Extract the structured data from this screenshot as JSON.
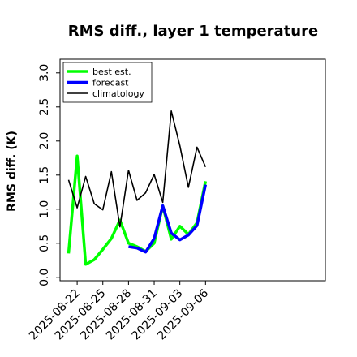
{
  "chart_data": {
    "type": "line",
    "title": "RMS diff., layer 1 temperature",
    "xlabel": "",
    "ylabel": "RMS diff. (K)",
    "x_range": [
      -2,
      29
    ],
    "ylim": [
      -0.05,
      3.2
    ],
    "yticks": [
      0.0,
      0.5,
      1.0,
      1.5,
      2.0,
      2.5,
      3.0
    ],
    "ytick_labels": [
      "0.0",
      "0.5",
      "1.0",
      "1.5",
      "2.0",
      "2.5",
      "3.0"
    ],
    "xticks": [
      {
        "label": "2025-08-22",
        "color": "#000000"
      },
      {
        "label": "2025-08-25",
        "color": "#000000"
      },
      {
        "label": "2025-08-28",
        "color": "#228B22"
      },
      {
        "label": "2025-08-31",
        "color": "#000000"
      },
      {
        "label": "2025-09-03",
        "color": "#000000"
      },
      {
        "label": "2025-09-06",
        "color": "#000000"
      }
    ],
    "grid": false,
    "legend_position": "top-left",
    "series": [
      {
        "name": "best est.",
        "color": "#00ff00",
        "dates": [
          "2025-08-21",
          "2025-08-22",
          "2025-08-23",
          "2025-08-24",
          "2025-08-25",
          "2025-08-26",
          "2025-08-27",
          "2025-08-28",
          "2025-08-29",
          "2025-08-30",
          "2025-08-31",
          "2025-09-01",
          "2025-09-02",
          "2025-09-03",
          "2025-09-04",
          "2025-09-05",
          "2025-09-06"
        ],
        "values": [
          0.35,
          1.78,
          0.19,
          0.26,
          0.41,
          0.57,
          0.84,
          0.5,
          0.45,
          0.38,
          0.5,
          1.05,
          0.56,
          0.75,
          0.63,
          0.8,
          1.41
        ]
      },
      {
        "name": "forecast",
        "color": "#0000ff",
        "dates": [
          "2025-08-28",
          "2025-08-29",
          "2025-08-30",
          "2025-08-31",
          "2025-09-01",
          "2025-09-02",
          "2025-09-03",
          "2025-09-04",
          "2025-09-05",
          "2025-09-06"
        ],
        "values": [
          0.45,
          0.43,
          0.37,
          0.57,
          1.05,
          0.65,
          0.55,
          0.62,
          0.76,
          1.36
        ]
      },
      {
        "name": "climatology",
        "color": "#000000",
        "dates": [
          "2025-08-21",
          "2025-08-22",
          "2025-08-23",
          "2025-08-24",
          "2025-08-25",
          "2025-08-26",
          "2025-08-27",
          "2025-08-28",
          "2025-08-29",
          "2025-08-30",
          "2025-08-31",
          "2025-09-01",
          "2025-09-02",
          "2025-09-03",
          "2025-09-04",
          "2025-09-05",
          "2025-09-06"
        ],
        "values": [
          1.43,
          1.02,
          1.48,
          1.08,
          0.99,
          1.55,
          0.74,
          1.57,
          1.13,
          1.24,
          1.51,
          1.1,
          2.44,
          1.93,
          1.32,
          1.91,
          1.62
        ]
      }
    ]
  }
}
